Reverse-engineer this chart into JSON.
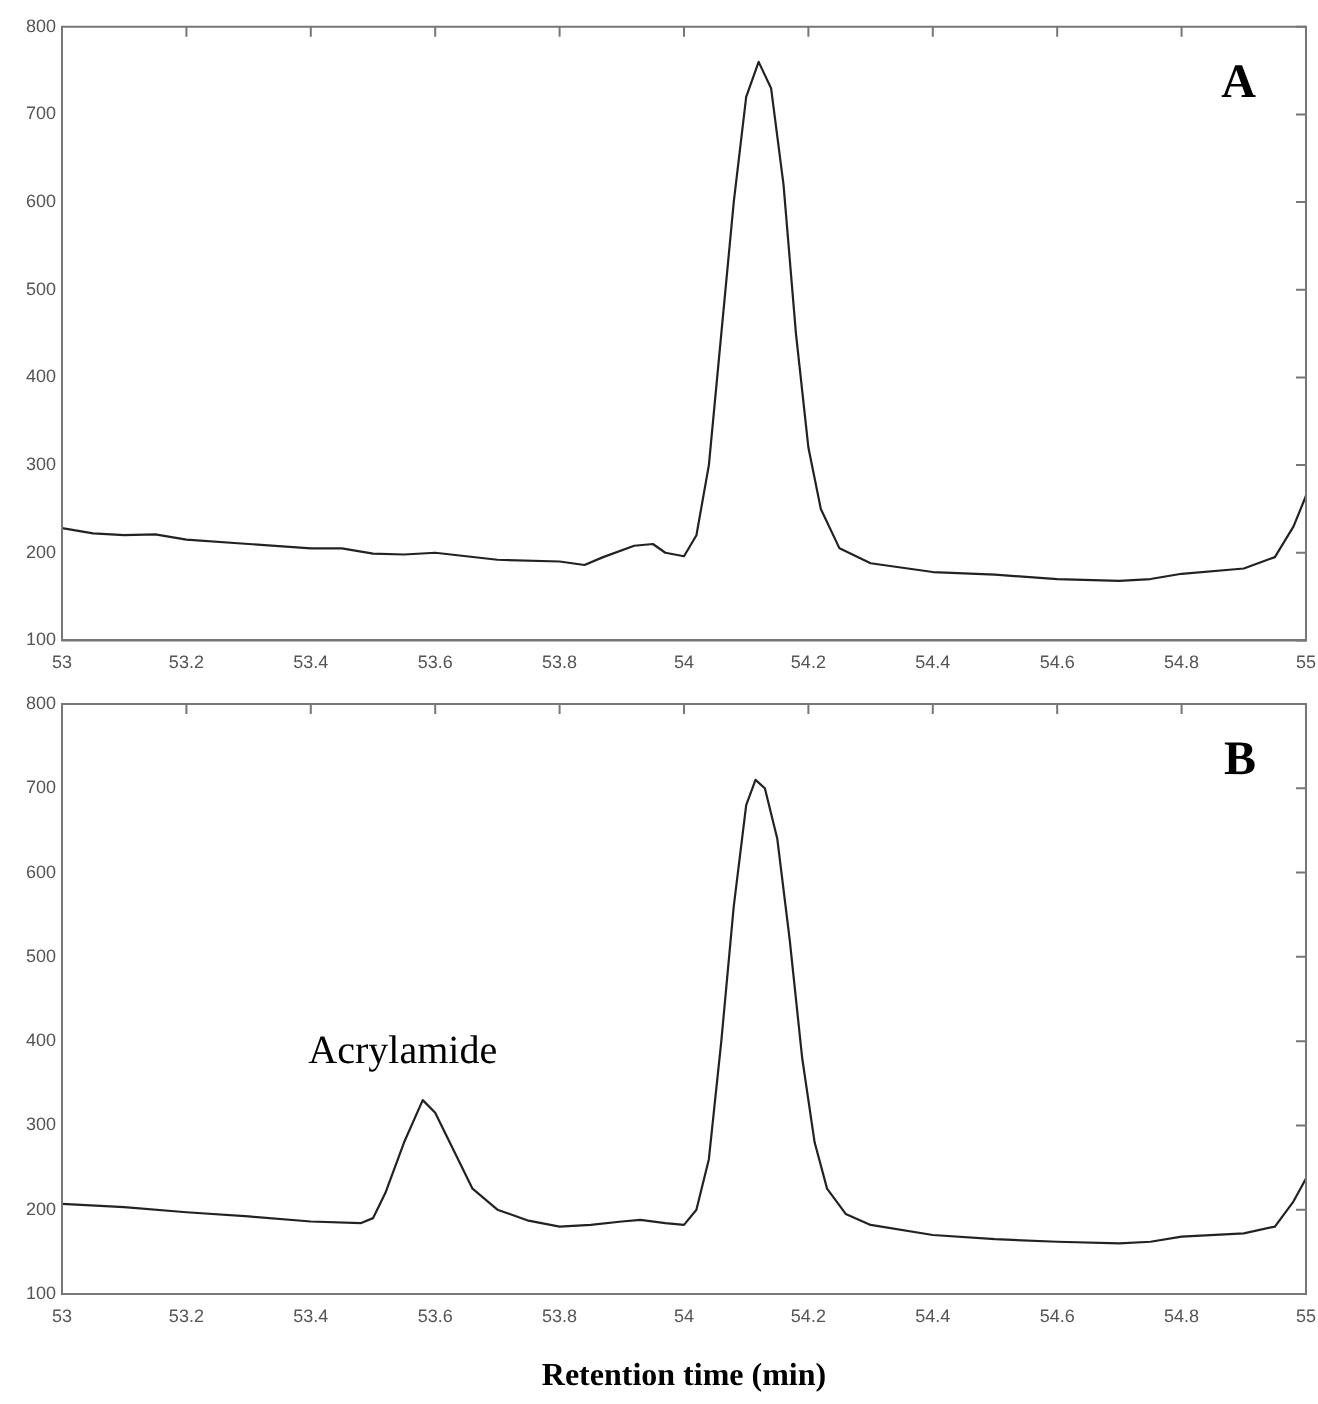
{
  "chart_data": [
    {
      "type": "line",
      "annotations": [
        "A"
      ],
      "xlim": [
        53,
        55
      ],
      "xticks": [
        53,
        53.2,
        53.4,
        53.6,
        53.8,
        54,
        54.2,
        54.4,
        54.6,
        54.8,
        55
      ],
      "ylim": [
        100,
        800
      ],
      "yticks": [
        100,
        200,
        300,
        400,
        500,
        600,
        700,
        800
      ],
      "grid": false,
      "marker": "none",
      "line_style": "solid",
      "legend": false,
      "series": [
        {
          "color": "#222222",
          "x": [
            53.0,
            53.05,
            53.1,
            53.15,
            53.2,
            53.3,
            53.4,
            53.45,
            53.5,
            53.55,
            53.6,
            53.7,
            53.8,
            53.84,
            53.87,
            53.92,
            53.95,
            53.97,
            54.0,
            54.02,
            54.04,
            54.06,
            54.08,
            54.1,
            54.12,
            54.14,
            54.16,
            54.18,
            54.2,
            54.22,
            54.25,
            54.3,
            54.4,
            54.5,
            54.6,
            54.7,
            54.75,
            54.8,
            54.9,
            54.95,
            54.98,
            55.0
          ],
          "values": [
            228,
            222,
            220,
            221,
            215,
            210,
            205,
            205,
            199,
            198,
            200,
            192,
            190,
            186,
            195,
            208,
            210,
            200,
            196,
            220,
            300,
            450,
            600,
            720,
            760,
            730,
            620,
            450,
            320,
            250,
            205,
            188,
            178,
            175,
            170,
            168,
            170,
            176,
            182,
            195,
            230,
            265
          ]
        }
      ]
    },
    {
      "type": "line",
      "xlabel": "Retention time (min)",
      "annotations": [
        "B",
        {
          "text": "Acrylamide",
          "x": 53.58,
          "y": 330
        }
      ],
      "xlim": [
        53,
        55
      ],
      "xticks": [
        53,
        53.2,
        53.4,
        53.6,
        53.8,
        54,
        54.2,
        54.4,
        54.6,
        54.8,
        55
      ],
      "ylim": [
        100,
        800
      ],
      "yticks": [
        100,
        200,
        300,
        400,
        500,
        600,
        700,
        800
      ],
      "grid": false,
      "marker": "none",
      "line_style": "solid",
      "legend": false,
      "series": [
        {
          "color": "#222222",
          "x": [
            53.0,
            53.1,
            53.2,
            53.3,
            53.4,
            53.48,
            53.5,
            53.52,
            53.55,
            53.58,
            53.6,
            53.63,
            53.66,
            53.7,
            53.75,
            53.8,
            53.85,
            53.9,
            53.93,
            53.97,
            54.0,
            54.02,
            54.04,
            54.06,
            54.08,
            54.1,
            54.115,
            54.13,
            54.15,
            54.17,
            54.19,
            54.21,
            54.23,
            54.26,
            54.3,
            54.4,
            54.5,
            54.6,
            54.7,
            54.75,
            54.8,
            54.9,
            54.95,
            54.98,
            55.0
          ],
          "values": [
            207,
            203,
            197,
            192,
            186,
            184,
            190,
            220,
            280,
            330,
            315,
            270,
            225,
            200,
            187,
            180,
            182,
            186,
            188,
            184,
            182,
            200,
            260,
            400,
            560,
            680,
            710,
            700,
            640,
            520,
            380,
            280,
            225,
            195,
            182,
            170,
            165,
            162,
            160,
            162,
            168,
            172,
            180,
            210,
            237
          ]
        }
      ]
    }
  ]
}
